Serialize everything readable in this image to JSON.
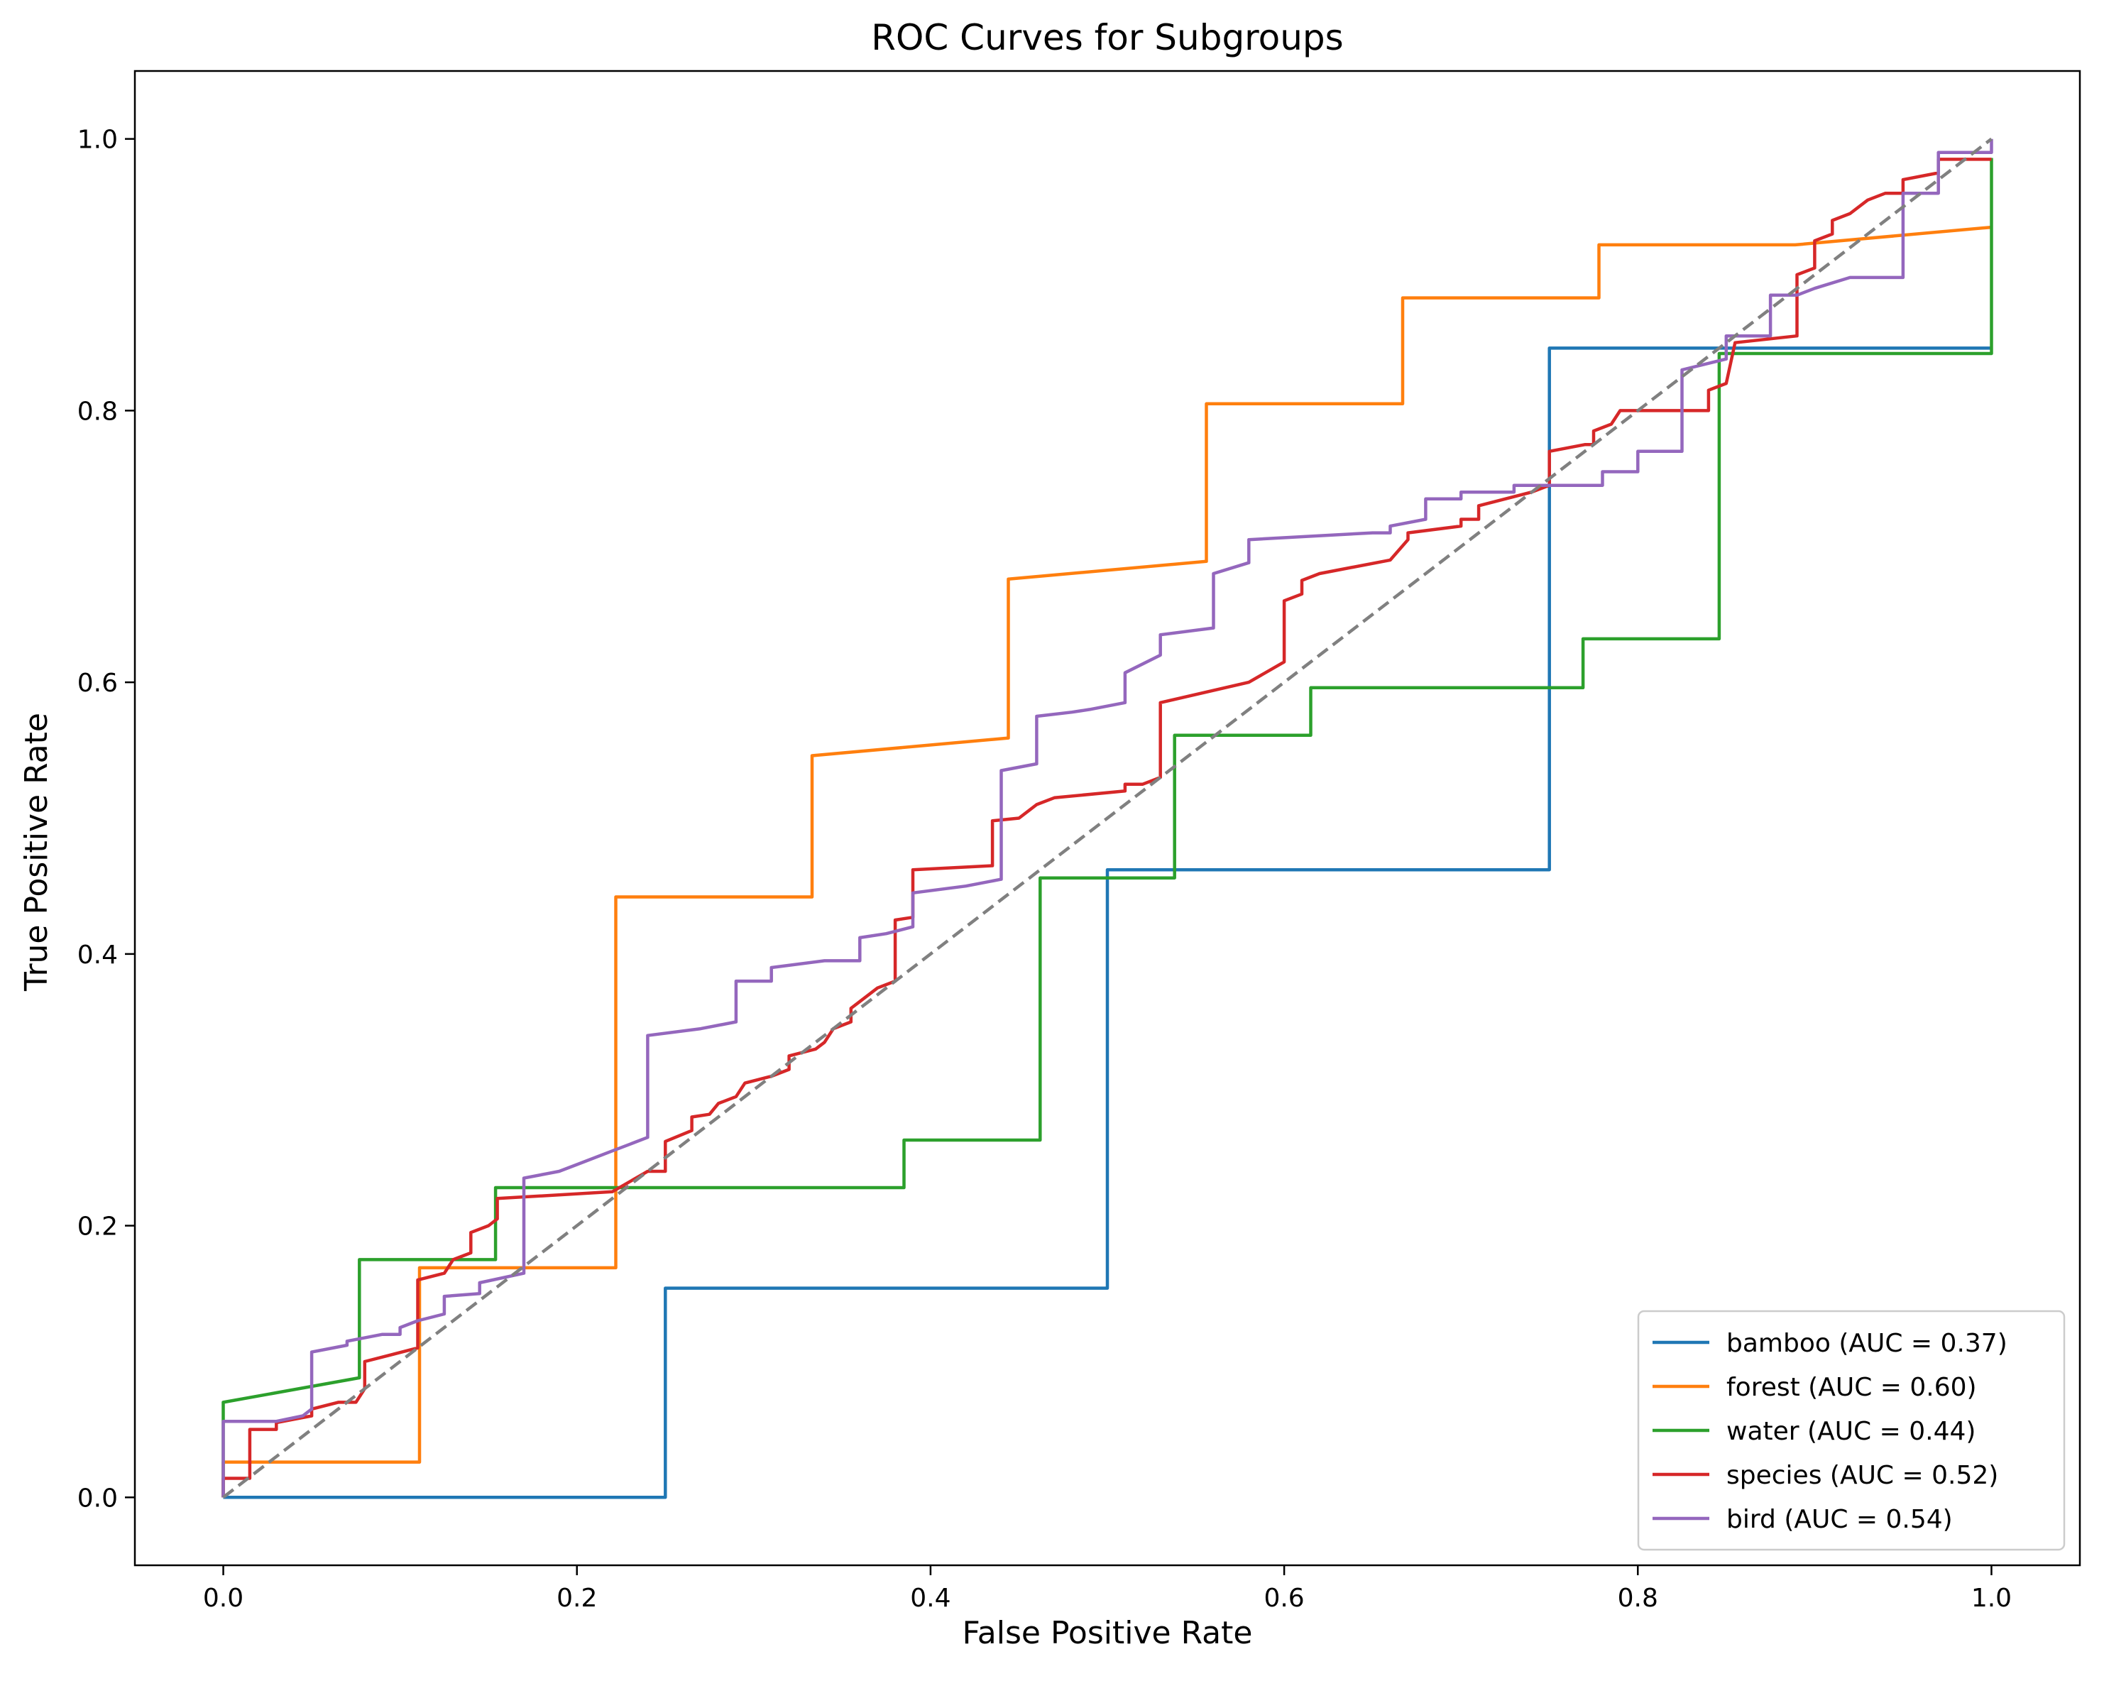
{
  "chart_data": {
    "type": "line",
    "title": "ROC Curves for Subgroups",
    "xlabel": "False Positive Rate",
    "ylabel": "True Positive Rate",
    "xlim": [
      -0.05,
      1.05
    ],
    "ylim": [
      -0.05,
      1.05
    ],
    "x_ticks": [
      0.0,
      0.2,
      0.4,
      0.6,
      0.8,
      1.0
    ],
    "x_tick_labels": [
      "0.0",
      "0.2",
      "0.4",
      "0.6",
      "0.8",
      "1.0"
    ],
    "y_ticks": [
      0.0,
      0.2,
      0.4,
      0.6,
      0.8,
      1.0
    ],
    "y_tick_labels": [
      "0.0",
      "0.2",
      "0.4",
      "0.6",
      "0.8",
      "1.0"
    ],
    "grid": false,
    "legend_position": "lower-right",
    "diagonal": {
      "points": [
        [
          0,
          0
        ],
        [
          1,
          1
        ]
      ],
      "color": "#808080",
      "style": "dashed"
    },
    "series": [
      {
        "name": "bamboo (AUC = 0.37)",
        "color": "#1f77b4",
        "points": [
          [
            0,
            0
          ],
          [
            0.25,
            0
          ],
          [
            0.25,
            0.154
          ],
          [
            0.5,
            0.154
          ],
          [
            0.5,
            0.462
          ],
          [
            0.75,
            0.462
          ],
          [
            0.75,
            0.846
          ],
          [
            1,
            0.846
          ]
        ]
      },
      {
        "name": "forest (AUC = 0.60)",
        "color": "#ff7f0e",
        "points": [
          [
            0,
            0
          ],
          [
            0,
            0.026
          ],
          [
            0.111,
            0.026
          ],
          [
            0.111,
            0.169
          ],
          [
            0.222,
            0.169
          ],
          [
            0.222,
            0.442
          ],
          [
            0.333,
            0.442
          ],
          [
            0.333,
            0.546
          ],
          [
            0.444,
            0.559
          ],
          [
            0.444,
            0.676
          ],
          [
            0.556,
            0.689
          ],
          [
            0.556,
            0.805
          ],
          [
            0.667,
            0.805
          ],
          [
            0.667,
            0.883
          ],
          [
            0.778,
            0.883
          ],
          [
            0.778,
            0.922
          ],
          [
            0.889,
            0.922
          ],
          [
            1,
            0.935
          ]
        ]
      },
      {
        "name": "water (AUC = 0.44)",
        "color": "#2ca02c",
        "points": [
          [
            0,
            0
          ],
          [
            0,
            0.07
          ],
          [
            0.077,
            0.088
          ],
          [
            0.077,
            0.175
          ],
          [
            0.154,
            0.175
          ],
          [
            0.154,
            0.228
          ],
          [
            0.385,
            0.228
          ],
          [
            0.385,
            0.263
          ],
          [
            0.462,
            0.263
          ],
          [
            0.462,
            0.456
          ],
          [
            0.538,
            0.456
          ],
          [
            0.538,
            0.561
          ],
          [
            0.615,
            0.561
          ],
          [
            0.615,
            0.596
          ],
          [
            0.769,
            0.596
          ],
          [
            0.769,
            0.632
          ],
          [
            0.846,
            0.632
          ],
          [
            0.846,
            0.842
          ],
          [
            1,
            0.842
          ],
          [
            1,
            0.986
          ]
        ]
      },
      {
        "name": "species (AUC = 0.52)",
        "color": "#d62728",
        "points": [
          [
            0,
            0
          ],
          [
            0,
            0.014
          ],
          [
            0.015,
            0.014
          ],
          [
            0.015,
            0.05
          ],
          [
            0.03,
            0.05
          ],
          [
            0.03,
            0.055
          ],
          [
            0.05,
            0.06
          ],
          [
            0.05,
            0.065
          ],
          [
            0.065,
            0.07
          ],
          [
            0.075,
            0.07
          ],
          [
            0.08,
            0.08
          ],
          [
            0.08,
            0.1
          ],
          [
            0.095,
            0.105
          ],
          [
            0.11,
            0.11
          ],
          [
            0.11,
            0.16
          ],
          [
            0.125,
            0.165
          ],
          [
            0.13,
            0.175
          ],
          [
            0.14,
            0.18
          ],
          [
            0.14,
            0.195
          ],
          [
            0.15,
            0.2
          ],
          [
            0.155,
            0.205
          ],
          [
            0.155,
            0.22
          ],
          [
            0.22,
            0.225
          ],
          [
            0.24,
            0.24
          ],
          [
            0.25,
            0.24
          ],
          [
            0.25,
            0.262
          ],
          [
            0.265,
            0.27
          ],
          [
            0.265,
            0.28
          ],
          [
            0.275,
            0.282
          ],
          [
            0.28,
            0.29
          ],
          [
            0.29,
            0.295
          ],
          [
            0.295,
            0.305
          ],
          [
            0.31,
            0.31
          ],
          [
            0.32,
            0.315
          ],
          [
            0.32,
            0.325
          ],
          [
            0.335,
            0.33
          ],
          [
            0.34,
            0.335
          ],
          [
            0.345,
            0.345
          ],
          [
            0.355,
            0.35
          ],
          [
            0.355,
            0.36
          ],
          [
            0.36,
            0.365
          ],
          [
            0.37,
            0.375
          ],
          [
            0.38,
            0.38
          ],
          [
            0.38,
            0.425
          ],
          [
            0.39,
            0.427
          ],
          [
            0.39,
            0.462
          ],
          [
            0.435,
            0.465
          ],
          [
            0.435,
            0.498
          ],
          [
            0.45,
            0.5
          ],
          [
            0.46,
            0.51
          ],
          [
            0.47,
            0.515
          ],
          [
            0.51,
            0.52
          ],
          [
            0.51,
            0.525
          ],
          [
            0.52,
            0.525
          ],
          [
            0.53,
            0.53
          ],
          [
            0.53,
            0.585
          ],
          [
            0.58,
            0.6
          ],
          [
            0.6,
            0.615
          ],
          [
            0.6,
            0.66
          ],
          [
            0.61,
            0.665
          ],
          [
            0.61,
            0.675
          ],
          [
            0.62,
            0.68
          ],
          [
            0.66,
            0.69
          ],
          [
            0.67,
            0.705
          ],
          [
            0.67,
            0.71
          ],
          [
            0.7,
            0.715
          ],
          [
            0.7,
            0.72
          ],
          [
            0.71,
            0.72
          ],
          [
            0.71,
            0.73
          ],
          [
            0.74,
            0.74
          ],
          [
            0.75,
            0.745
          ],
          [
            0.75,
            0.77
          ],
          [
            0.77,
            0.775
          ],
          [
            0.775,
            0.775
          ],
          [
            0.775,
            0.785
          ],
          [
            0.785,
            0.79
          ],
          [
            0.79,
            0.8
          ],
          [
            0.84,
            0.8
          ],
          [
            0.84,
            0.815
          ],
          [
            0.85,
            0.82
          ],
          [
            0.855,
            0.85
          ],
          [
            0.89,
            0.855
          ],
          [
            0.89,
            0.9
          ],
          [
            0.9,
            0.905
          ],
          [
            0.9,
            0.925
          ],
          [
            0.91,
            0.93
          ],
          [
            0.91,
            0.94
          ],
          [
            0.92,
            0.945
          ],
          [
            0.93,
            0.955
          ],
          [
            0.94,
            0.96
          ],
          [
            0.95,
            0.96
          ],
          [
            0.95,
            0.97
          ],
          [
            0.97,
            0.975
          ],
          [
            0.97,
            0.985
          ],
          [
            1,
            0.985
          ]
        ]
      },
      {
        "name": "bird (AUC = 0.54)",
        "color": "#9467bd",
        "points": [
          [
            0,
            0
          ],
          [
            0,
            0.056
          ],
          [
            0.03,
            0.056
          ],
          [
            0.045,
            0.06
          ],
          [
            0.05,
            0.065
          ],
          [
            0.05,
            0.107
          ],
          [
            0.07,
            0.112
          ],
          [
            0.07,
            0.115
          ],
          [
            0.09,
            0.12
          ],
          [
            0.1,
            0.12
          ],
          [
            0.1,
            0.125
          ],
          [
            0.11,
            0.13
          ],
          [
            0.125,
            0.135
          ],
          [
            0.125,
            0.148
          ],
          [
            0.145,
            0.15
          ],
          [
            0.145,
            0.158
          ],
          [
            0.17,
            0.165
          ],
          [
            0.17,
            0.235
          ],
          [
            0.19,
            0.24
          ],
          [
            0.2,
            0.245
          ],
          [
            0.22,
            0.255
          ],
          [
            0.23,
            0.26
          ],
          [
            0.24,
            0.265
          ],
          [
            0.24,
            0.34
          ],
          [
            0.27,
            0.345
          ],
          [
            0.29,
            0.35
          ],
          [
            0.29,
            0.38
          ],
          [
            0.31,
            0.38
          ],
          [
            0.31,
            0.39
          ],
          [
            0.34,
            0.395
          ],
          [
            0.36,
            0.395
          ],
          [
            0.36,
            0.412
          ],
          [
            0.375,
            0.415
          ],
          [
            0.39,
            0.42
          ],
          [
            0.39,
            0.445
          ],
          [
            0.42,
            0.45
          ],
          [
            0.44,
            0.455
          ],
          [
            0.44,
            0.535
          ],
          [
            0.46,
            0.54
          ],
          [
            0.46,
            0.575
          ],
          [
            0.48,
            0.578
          ],
          [
            0.49,
            0.58
          ],
          [
            0.51,
            0.585
          ],
          [
            0.51,
            0.607
          ],
          [
            0.53,
            0.62
          ],
          [
            0.53,
            0.635
          ],
          [
            0.56,
            0.64
          ],
          [
            0.56,
            0.68
          ],
          [
            0.58,
            0.688
          ],
          [
            0.58,
            0.705
          ],
          [
            0.65,
            0.71
          ],
          [
            0.66,
            0.71
          ],
          [
            0.66,
            0.715
          ],
          [
            0.68,
            0.72
          ],
          [
            0.68,
            0.735
          ],
          [
            0.7,
            0.735
          ],
          [
            0.7,
            0.74
          ],
          [
            0.73,
            0.74
          ],
          [
            0.73,
            0.745
          ],
          [
            0.75,
            0.745
          ],
          [
            0.78,
            0.745
          ],
          [
            0.78,
            0.755
          ],
          [
            0.8,
            0.755
          ],
          [
            0.8,
            0.77
          ],
          [
            0.825,
            0.77
          ],
          [
            0.825,
            0.83
          ],
          [
            0.85,
            0.838
          ],
          [
            0.85,
            0.855
          ],
          [
            0.875,
            0.855
          ],
          [
            0.875,
            0.885
          ],
          [
            0.89,
            0.885
          ],
          [
            0.9,
            0.89
          ],
          [
            0.92,
            0.898
          ],
          [
            0.95,
            0.898
          ],
          [
            0.95,
            0.96
          ],
          [
            0.97,
            0.96
          ],
          [
            0.97,
            0.99
          ],
          [
            1,
            0.99
          ],
          [
            1,
            1
          ]
        ]
      }
    ]
  }
}
